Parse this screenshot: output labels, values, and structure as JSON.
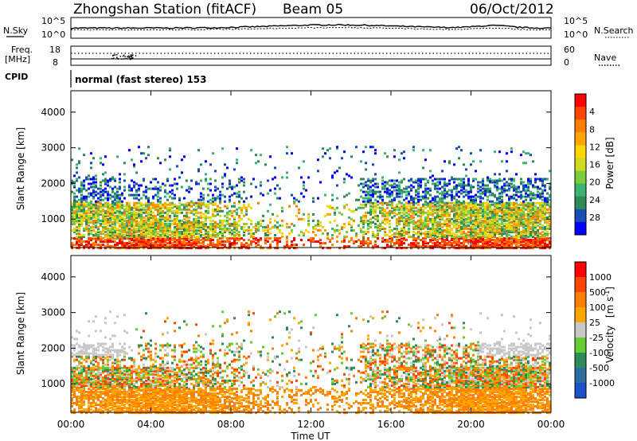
{
  "header": {
    "station": "Zhongshan Station (fitACF)",
    "beam": "Beam 05",
    "date": "06/Oct/2012"
  },
  "noise_panel": {
    "left_label": "N.Sky",
    "right_label": "N.Search",
    "left_ticks": [
      "10^5",
      "10^0"
    ],
    "right_ticks": [
      "10^5",
      "10^0"
    ]
  },
  "freq_panel": {
    "label_line1": "Freq.",
    "label_line2": "[MHz]",
    "left_ticks": [
      "18",
      "8"
    ],
    "right_ticks": [
      "60",
      "0"
    ],
    "right_label": "Nave"
  },
  "cpid": {
    "label": "CPID",
    "text": "normal (fast stereo) 153"
  },
  "chart_data": [
    {
      "type": "heatmap",
      "name": "Power",
      "ylabel": "Slant Range [km]",
      "xlabel": "Time UT",
      "x_ticks": [
        "00:00",
        "04:00",
        "08:00",
        "12:00",
        "16:00",
        "20:00",
        "00:00"
      ],
      "y_ticks": [
        "1000",
        "2000",
        "3000",
        "4000"
      ],
      "ylim": [
        200,
        4600
      ],
      "colorbar": {
        "label": "Power [dB]",
        "ticks": [
          "4",
          "8",
          "12",
          "16",
          "20",
          "24",
          "28"
        ],
        "colors": [
          "#0000ff",
          "#1450b4",
          "#2e8b57",
          "#3cb371",
          "#7ccd3c",
          "#d2dc1e",
          "#ffd700",
          "#ffa500",
          "#ff7f00",
          "#ff4500",
          "#ff0000"
        ]
      }
    },
    {
      "type": "heatmap",
      "name": "Velocity",
      "ylabel": "Slant Range [km]",
      "xlabel": "Time UT",
      "x_ticks": [
        "00:00",
        "04:00",
        "08:00",
        "12:00",
        "16:00",
        "20:00",
        "00:00"
      ],
      "y_ticks": [
        "1000",
        "2000",
        "3000",
        "4000"
      ],
      "ylim": [
        200,
        4600
      ],
      "colorbar": {
        "label": "Velocity",
        "unit": "[m s",
        "unit_exp": "-1",
        "unit_close": "]",
        "ticks": [
          "1000",
          "500",
          "100",
          "25",
          "-25",
          "-100",
          "-500",
          "-1000"
        ],
        "colors": [
          "#1e50c8",
          "#2e6b9e",
          "#2e8b57",
          "#66cc33",
          "#c8c8c8",
          "#ffa500",
          "#ff7f00",
          "#ff4500",
          "#ff0000"
        ]
      }
    }
  ]
}
